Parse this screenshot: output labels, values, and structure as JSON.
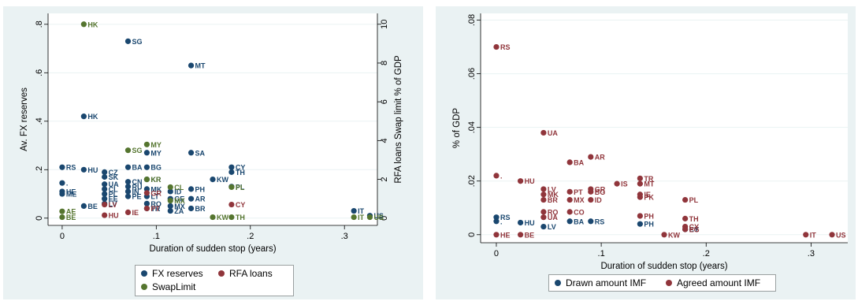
{
  "chart_data": [
    {
      "type": "scatter",
      "xlabel": "Duration of sudden stop (years)",
      "ylabel": "Av. FX reserves",
      "y2label": "RFA loans Swap limit % of GDP",
      "xlim": [
        -0.015,
        0.335
      ],
      "ylim": [
        -0.03,
        0.845
      ],
      "y2lim": [
        -0.375,
        10.56
      ],
      "xticks": [
        0,
        0.1,
        0.2,
        0.3
      ],
      "xtick_labels": [
        "0",
        ".1",
        ".2",
        ".3"
      ],
      "yticks": [
        0,
        0.2,
        0.4,
        0.6,
        0.8
      ],
      "ytick_labels": [
        "0",
        ".2",
        ".4",
        ".6",
        ".8"
      ],
      "y2ticks": [
        0,
        2,
        4,
        6,
        8,
        10
      ],
      "y2tick_labels": [
        "0",
        "2",
        "4",
        "6",
        "8",
        "10"
      ],
      "grid": true,
      "legend_position": "bottom",
      "series": [
        {
          "name": "FX reserves",
          "color": "#1a476f",
          "axis": "left",
          "points": [
            {
              "x": 0.0,
              "y": 0.21,
              "label": "RS"
            },
            {
              "x": 0.0,
              "y": 0.145,
              "label": "."
            },
            {
              "x": 0.0,
              "y": 0.11,
              "label": "HE"
            },
            {
              "x": 0.0,
              "y": 0.1,
              "label": "ME"
            },
            {
              "x": 0.023,
              "y": 0.42,
              "label": "HK"
            },
            {
              "x": 0.023,
              "y": 0.2,
              "label": "HU"
            },
            {
              "x": 0.023,
              "y": 0.05,
              "label": "BE"
            },
            {
              "x": 0.045,
              "y": 0.19,
              "label": "CZ"
            },
            {
              "x": 0.045,
              "y": 0.17,
              "label": "SK"
            },
            {
              "x": 0.045,
              "y": 0.14,
              "label": "UA"
            },
            {
              "x": 0.045,
              "y": 0.12,
              "label": "CL"
            },
            {
              "x": 0.045,
              "y": 0.1,
              "label": "PL"
            },
            {
              "x": 0.045,
              "y": 0.08,
              "label": "EE"
            },
            {
              "x": 0.045,
              "y": 0.06,
              "label": "LV"
            },
            {
              "x": 0.07,
              "y": 0.73,
              "label": "SG"
            },
            {
              "x": 0.07,
              "y": 0.21,
              "label": "BA"
            },
            {
              "x": 0.07,
              "y": 0.15,
              "label": "CN"
            },
            {
              "x": 0.07,
              "y": 0.13,
              "label": "RU"
            },
            {
              "x": 0.07,
              "y": 0.11,
              "label": "IN"
            },
            {
              "x": 0.07,
              "y": 0.09,
              "label": "PE"
            },
            {
              "x": 0.09,
              "y": 0.27,
              "label": "MY"
            },
            {
              "x": 0.09,
              "y": 0.21,
              "label": "BG"
            },
            {
              "x": 0.09,
              "y": 0.16,
              "label": "KR"
            },
            {
              "x": 0.09,
              "y": 0.12,
              "label": "MK"
            },
            {
              "x": 0.09,
              "y": 0.09,
              "label": "LT"
            },
            {
              "x": 0.09,
              "y": 0.06,
              "label": "RO"
            },
            {
              "x": 0.09,
              "y": 0.04,
              "label": "TR"
            },
            {
              "x": 0.115,
              "y": 0.11,
              "label": "ID"
            },
            {
              "x": 0.115,
              "y": 0.08,
              "label": "GE"
            },
            {
              "x": 0.115,
              "y": 0.05,
              "label": "MX"
            },
            {
              "x": 0.115,
              "y": 0.03,
              "label": "ZA"
            },
            {
              "x": 0.137,
              "y": 0.63,
              "label": "MT"
            },
            {
              "x": 0.137,
              "y": 0.27,
              "label": "SA"
            },
            {
              "x": 0.137,
              "y": 0.12,
              "label": "PH"
            },
            {
              "x": 0.137,
              "y": 0.08,
              "label": "AR"
            },
            {
              "x": 0.137,
              "y": 0.04,
              "label": "BR"
            },
            {
              "x": 0.16,
              "y": 0.16,
              "label": "KW"
            },
            {
              "x": 0.18,
              "y": 0.21,
              "label": "CY"
            },
            {
              "x": 0.18,
              "y": 0.19,
              "label": "TH"
            },
            {
              "x": 0.18,
              "y": 0.13,
              "label": "PL"
            },
            {
              "x": 0.31,
              "y": 0.03,
              "label": "IT"
            },
            {
              "x": 0.327,
              "y": 0.01,
              "label": "US"
            }
          ]
        },
        {
          "name": "RFA loans",
          "color": "#90353b",
          "axis": "right",
          "points": [
            {
              "x": 0.045,
              "y": 0.7,
              "label": "LV"
            },
            {
              "x": 0.045,
              "y": 0.15,
              "label": "HU"
            },
            {
              "x": 0.09,
              "y": 1.3,
              "label": "GR"
            },
            {
              "x": 0.18,
              "y": 0.7,
              "label": "CY"
            },
            {
              "x": 0.07,
              "y": 0.3,
              "label": "IE"
            },
            {
              "x": 0.09,
              "y": 0.5,
              "label": "PT"
            }
          ]
        },
        {
          "name": "SwapLimit",
          "color": "#55752f",
          "axis": "right",
          "points": [
            {
              "x": 0.023,
              "y": 10.0,
              "label": "HK"
            },
            {
              "x": 0.07,
              "y": 3.5,
              "label": "SG"
            },
            {
              "x": 0.09,
              "y": 3.8,
              "label": "MY"
            },
            {
              "x": 0.09,
              "y": 2.0,
              "label": "KR"
            },
            {
              "x": 0.0,
              "y": 0.35,
              "label": "AE"
            },
            {
              "x": 0.0,
              "y": 0.05,
              "label": "BE"
            },
            {
              "x": 0.115,
              "y": 1.6,
              "label": "CL"
            },
            {
              "x": 0.115,
              "y": 0.9,
              "label": "MX"
            },
            {
              "x": 0.18,
              "y": 1.6,
              "label": "PL"
            },
            {
              "x": 0.16,
              "y": 0.05,
              "label": "KW"
            },
            {
              "x": 0.18,
              "y": 0.05,
              "label": "TH"
            },
            {
              "x": 0.31,
              "y": 0.05,
              "label": "IT"
            },
            {
              "x": 0.327,
              "y": 0.05,
              "label": "US"
            }
          ]
        }
      ]
    },
    {
      "type": "scatter",
      "xlabel": "Duration of sudden stop (years)",
      "ylabel": "% of GDP",
      "xlim": [
        -0.015,
        0.335
      ],
      "ylim": [
        -0.003,
        0.0825
      ],
      "xticks": [
        0,
        0.1,
        0.2,
        0.3
      ],
      "xtick_labels": [
        "0",
        ".1",
        ".2",
        ".3"
      ],
      "yticks": [
        0,
        0.02,
        0.04,
        0.06,
        0.08
      ],
      "ytick_labels": [
        "0",
        ".02",
        ".04",
        ".06",
        ".08"
      ],
      "grid": true,
      "legend_position": "bottom",
      "series": [
        {
          "name": "Drawn amount IMF",
          "color": "#1a476f",
          "points": [
            {
              "x": 0.0,
              "y": 0.0065,
              "label": "RS"
            },
            {
              "x": 0.0,
              "y": 0.005,
              "label": "."
            },
            {
              "x": 0.023,
              "y": 0.0045,
              "label": "HU"
            },
            {
              "x": 0.045,
              "y": 0.003,
              "label": "LV"
            },
            {
              "x": 0.07,
              "y": 0.005,
              "label": "BA"
            },
            {
              "x": 0.09,
              "y": 0.005,
              "label": "RS"
            },
            {
              "x": 0.137,
              "y": 0.004,
              "label": "PH"
            },
            {
              "x": 0.18,
              "y": 0.002,
              "label": "CY"
            }
          ]
        },
        {
          "name": "Agreed amount IMF",
          "color": "#90353b",
          "points": [
            {
              "x": 0.0,
              "y": 0.07,
              "label": "RS"
            },
            {
              "x": 0.0,
              "y": 0.022,
              "label": "."
            },
            {
              "x": 0.0,
              "y": 0.0,
              "label": "HE"
            },
            {
              "x": 0.023,
              "y": 0.02,
              "label": "HU"
            },
            {
              "x": 0.023,
              "y": 0.0,
              "label": "BE"
            },
            {
              "x": 0.045,
              "y": 0.038,
              "label": "UA"
            },
            {
              "x": 0.045,
              "y": 0.017,
              "label": "LV"
            },
            {
              "x": 0.045,
              "y": 0.015,
              "label": "MK"
            },
            {
              "x": 0.045,
              "y": 0.013,
              "label": "BR"
            },
            {
              "x": 0.045,
              "y": 0.0085,
              "label": "RO"
            },
            {
              "x": 0.045,
              "y": 0.0065,
              "label": "UA"
            },
            {
              "x": 0.07,
              "y": 0.027,
              "label": "BA"
            },
            {
              "x": 0.07,
              "y": 0.016,
              "label": "PT"
            },
            {
              "x": 0.07,
              "y": 0.013,
              "label": "MX"
            },
            {
              "x": 0.07,
              "y": 0.0085,
              "label": "CO"
            },
            {
              "x": 0.09,
              "y": 0.029,
              "label": "AR"
            },
            {
              "x": 0.09,
              "y": 0.017,
              "label": "GR"
            },
            {
              "x": 0.09,
              "y": 0.016,
              "label": "BG"
            },
            {
              "x": 0.09,
              "y": 0.013,
              "label": "ID"
            },
            {
              "x": 0.115,
              "y": 0.019,
              "label": "IS"
            },
            {
              "x": 0.137,
              "y": 0.021,
              "label": "TR"
            },
            {
              "x": 0.137,
              "y": 0.019,
              "label": "MT"
            },
            {
              "x": 0.137,
              "y": 0.015,
              "label": "IE"
            },
            {
              "x": 0.137,
              "y": 0.014,
              "label": "PK"
            },
            {
              "x": 0.137,
              "y": 0.007,
              "label": "PH"
            },
            {
              "x": 0.16,
              "y": 0.0,
              "label": "KW"
            },
            {
              "x": 0.18,
              "y": 0.013,
              "label": "PL"
            },
            {
              "x": 0.18,
              "y": 0.006,
              "label": "TH"
            },
            {
              "x": 0.18,
              "y": 0.003,
              "label": "CY"
            },
            {
              "x": 0.18,
              "y": 0.002,
              "label": "EG"
            },
            {
              "x": 0.295,
              "y": 0.0,
              "label": "IT"
            },
            {
              "x": 0.32,
              "y": 0.0,
              "label": "US"
            }
          ]
        }
      ]
    }
  ]
}
